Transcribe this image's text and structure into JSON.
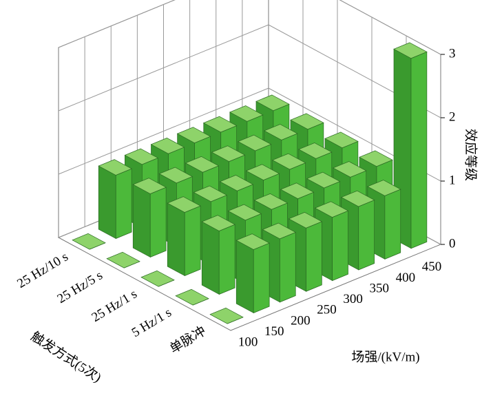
{
  "chart_data": {
    "type": "bar3d",
    "x_label": "场强/(kV/m)",
    "y_label": "触发方式(5次)",
    "z_label": "效应等级",
    "categories": [
      "100",
      "150",
      "200",
      "250",
      "300",
      "350",
      "400",
      "450"
    ],
    "series": [
      {
        "name": "单脉冲",
        "values": [
          0,
          1,
          1,
          1,
          1,
          1,
          1,
          3
        ]
      },
      {
        "name": "5 Hz/1 s",
        "values": [
          0,
          1,
          1,
          1,
          1,
          1,
          1,
          1
        ]
      },
      {
        "name": "25 Hz/1 s",
        "values": [
          0,
          1,
          1,
          1,
          1,
          1,
          1,
          1
        ]
      },
      {
        "name": "25 Hz/5 s",
        "values": [
          0,
          1,
          1,
          1,
          1,
          1,
          1,
          1
        ]
      },
      {
        "name": "25 Hz/10 s",
        "values": [
          0,
          1,
          1,
          1,
          1,
          1,
          1,
          1
        ]
      }
    ],
    "color": "#4cb93a",
    "zlim": [
      0,
      3
    ],
    "zticks": [
      0,
      1,
      2,
      3
    ],
    "grid": true
  }
}
